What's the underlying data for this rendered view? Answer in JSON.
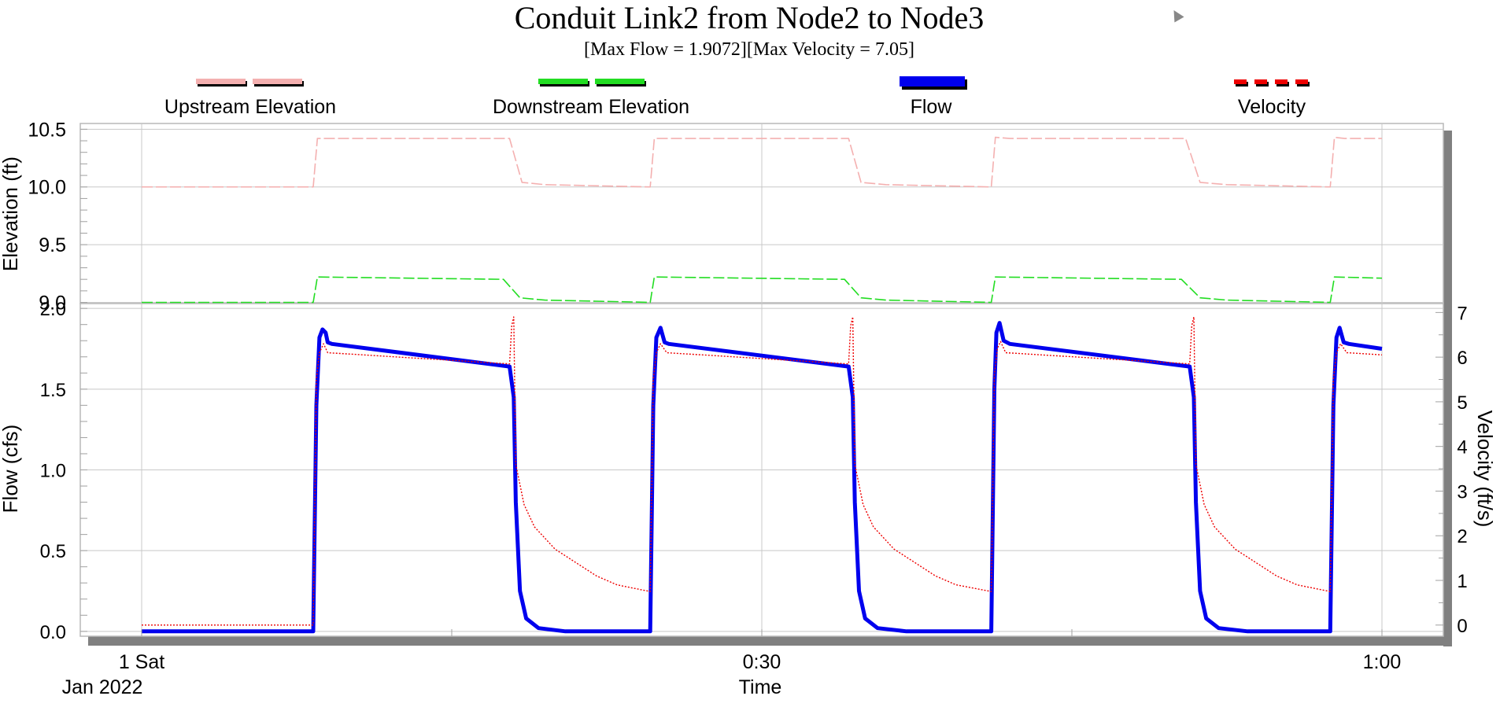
{
  "chart_data": {
    "type": "line",
    "title": "Conduit Link2 from Node2 to Node3",
    "subtitle": "[Max Flow = 1.9072][Max Velocity = 7.05]",
    "xlabel": "Time",
    "x_range_minutes": [
      0,
      60
    ],
    "x_ticks": [
      {
        "t": 0,
        "line1": "1 Sat",
        "line2": "Jan 2022"
      },
      {
        "t": 30,
        "line1": "0:30",
        "line2": ""
      },
      {
        "t": 60,
        "line1": "1:00",
        "line2": ""
      }
    ],
    "legend": [
      {
        "name": "Upstream Elevation",
        "color": "#f4b0b0",
        "style": "dashed"
      },
      {
        "name": "Downstream Elevation",
        "color": "#22dd22",
        "style": "dashed"
      },
      {
        "name": "Flow",
        "color": "#0000ee",
        "style": "solid"
      },
      {
        "name": "Velocity",
        "color": "#ee0000",
        "style": "dotted"
      }
    ],
    "panels": [
      {
        "id": "elevation",
        "ylabel": "Elevation (ft)",
        "ylim": [
          8.99,
          10.55
        ],
        "y_ticks": [
          "9.0",
          "9.5",
          "10.0",
          "10.5"
        ],
        "series": [
          {
            "name": "Upstream Elevation",
            "color": "#f4b0b0",
            "style": "dashed",
            "axis": "left",
            "points": [
              [
                0,
                10.0
              ],
              [
                8.3,
                10.0
              ],
              [
                8.5,
                10.42
              ],
              [
                13.0,
                10.42
              ],
              [
                17.0,
                10.42
              ],
              [
                17.8,
                10.42
              ],
              [
                18.4,
                10.04
              ],
              [
                19.5,
                10.02
              ],
              [
                24.6,
                10.0
              ],
              [
                24.8,
                10.42
              ],
              [
                30,
                10.42
              ],
              [
                34.2,
                10.42
              ],
              [
                34.8,
                10.04
              ],
              [
                36.0,
                10.02
              ],
              [
                41.1,
                10.0
              ],
              [
                41.3,
                10.43
              ],
              [
                42.0,
                10.42
              ],
              [
                50.5,
                10.42
              ],
              [
                51.2,
                10.04
              ],
              [
                52.5,
                10.02
              ],
              [
                57.5,
                10.0
              ],
              [
                57.7,
                10.43
              ],
              [
                58.2,
                10.42
              ],
              [
                60,
                10.42
              ]
            ]
          },
          {
            "name": "Downstream Elevation",
            "color": "#22dd22",
            "style": "dashed",
            "axis": "left",
            "points": [
              [
                0,
                9.0
              ],
              [
                8.3,
                9.0
              ],
              [
                8.5,
                9.22
              ],
              [
                17.5,
                9.2
              ],
              [
                18.3,
                9.04
              ],
              [
                19.5,
                9.02
              ],
              [
                24.6,
                9.0
              ],
              [
                24.8,
                9.22
              ],
              [
                34.0,
                9.2
              ],
              [
                34.8,
                9.04
              ],
              [
                36.0,
                9.02
              ],
              [
                41.1,
                9.0
              ],
              [
                41.3,
                9.22
              ],
              [
                50.3,
                9.2
              ],
              [
                51.2,
                9.04
              ],
              [
                52.5,
                9.02
              ],
              [
                57.5,
                9.0
              ],
              [
                57.7,
                9.22
              ],
              [
                60,
                9.21
              ]
            ]
          }
        ]
      },
      {
        "id": "flow",
        "ylabel": "Flow (cfs)",
        "ylabel_right": "Velocity (ft/s)",
        "ylim": [
          -0.03,
          2.03
        ],
        "ylim_right": [
          -0.25,
          7.2
        ],
        "y_ticks": [
          "0.0",
          "0.5",
          "1.0",
          "1.5",
          "2.0"
        ],
        "y_ticks_right": [
          "0",
          "1",
          "2",
          "3",
          "4",
          "5",
          "6",
          "7"
        ],
        "series": [
          {
            "name": "Flow",
            "color": "#0000ee",
            "style": "solid",
            "axis": "left",
            "points": [
              [
                0,
                0
              ],
              [
                8.3,
                0
              ],
              [
                8.45,
                1.4
              ],
              [
                8.6,
                1.82
              ],
              [
                8.75,
                1.87
              ],
              [
                8.9,
                1.85
              ],
              [
                9.0,
                1.79
              ],
              [
                9.2,
                1.78
              ],
              [
                17.8,
                1.64
              ],
              [
                18.0,
                1.45
              ],
              [
                18.1,
                0.8
              ],
              [
                18.3,
                0.25
              ],
              [
                18.6,
                0.08
              ],
              [
                19.2,
                0.02
              ],
              [
                20.5,
                0.0
              ],
              [
                24.6,
                0
              ],
              [
                24.75,
                1.4
              ],
              [
                24.9,
                1.82
              ],
              [
                25.1,
                1.88
              ],
              [
                25.3,
                1.79
              ],
              [
                25.5,
                1.78
              ],
              [
                34.2,
                1.64
              ],
              [
                34.4,
                1.45
              ],
              [
                34.5,
                0.8
              ],
              [
                34.7,
                0.25
              ],
              [
                35.0,
                0.08
              ],
              [
                35.6,
                0.02
              ],
              [
                37.0,
                0.0
              ],
              [
                41.1,
                0
              ],
              [
                41.25,
                1.5
              ],
              [
                41.35,
                1.85
              ],
              [
                41.5,
                1.91
              ],
              [
                41.7,
                1.8
              ],
              [
                42.0,
                1.78
              ],
              [
                50.7,
                1.64
              ],
              [
                50.9,
                1.45
              ],
              [
                51.0,
                0.8
              ],
              [
                51.2,
                0.25
              ],
              [
                51.5,
                0.08
              ],
              [
                52.1,
                0.02
              ],
              [
                53.5,
                0.0
              ],
              [
                57.5,
                0
              ],
              [
                57.65,
                1.4
              ],
              [
                57.8,
                1.82
              ],
              [
                57.95,
                1.88
              ],
              [
                58.15,
                1.79
              ],
              [
                58.4,
                1.78
              ],
              [
                60,
                1.75
              ]
            ]
          },
          {
            "name": "Velocity",
            "color": "#ee0000",
            "style": "dotted",
            "axis": "right",
            "points": [
              [
                0,
                0
              ],
              [
                8.3,
                0
              ],
              [
                8.45,
                5.5
              ],
              [
                8.6,
                6.1
              ],
              [
                8.8,
                6.3
              ],
              [
                9.0,
                6.1
              ],
              [
                17.8,
                5.85
              ],
              [
                17.9,
                6.7
              ],
              [
                18.0,
                6.9
              ],
              [
                18.1,
                3.6
              ],
              [
                18.5,
                2.7
              ],
              [
                19.0,
                2.2
              ],
              [
                20.0,
                1.7
              ],
              [
                21.0,
                1.4
              ],
              [
                22.0,
                1.1
              ],
              [
                23.0,
                0.9
              ],
              [
                24.6,
                0.75
              ],
              [
                24.75,
                5.5
              ],
              [
                24.9,
                6.1
              ],
              [
                25.1,
                6.3
              ],
              [
                25.4,
                6.1
              ],
              [
                34.2,
                5.85
              ],
              [
                34.3,
                6.7
              ],
              [
                34.4,
                6.9
              ],
              [
                34.5,
                3.6
              ],
              [
                34.9,
                2.7
              ],
              [
                35.4,
                2.2
              ],
              [
                36.4,
                1.7
              ],
              [
                37.4,
                1.4
              ],
              [
                38.4,
                1.1
              ],
              [
                39.4,
                0.9
              ],
              [
                41.1,
                0.75
              ],
              [
                41.25,
                5.6
              ],
              [
                41.4,
                6.2
              ],
              [
                41.55,
                6.35
              ],
              [
                41.8,
                6.1
              ],
              [
                50.7,
                5.85
              ],
              [
                50.8,
                6.7
              ],
              [
                50.9,
                6.9
              ],
              [
                51.0,
                3.6
              ],
              [
                51.4,
                2.7
              ],
              [
                51.9,
                2.2
              ],
              [
                52.9,
                1.7
              ],
              [
                53.9,
                1.4
              ],
              [
                54.9,
                1.1
              ],
              [
                55.9,
                0.9
              ],
              [
                57.5,
                0.75
              ],
              [
                57.65,
                5.5
              ],
              [
                57.8,
                6.1
              ],
              [
                58.0,
                6.3
              ],
              [
                58.3,
                6.1
              ],
              [
                60,
                6.05
              ]
            ]
          }
        ]
      }
    ],
    "grid": true
  }
}
